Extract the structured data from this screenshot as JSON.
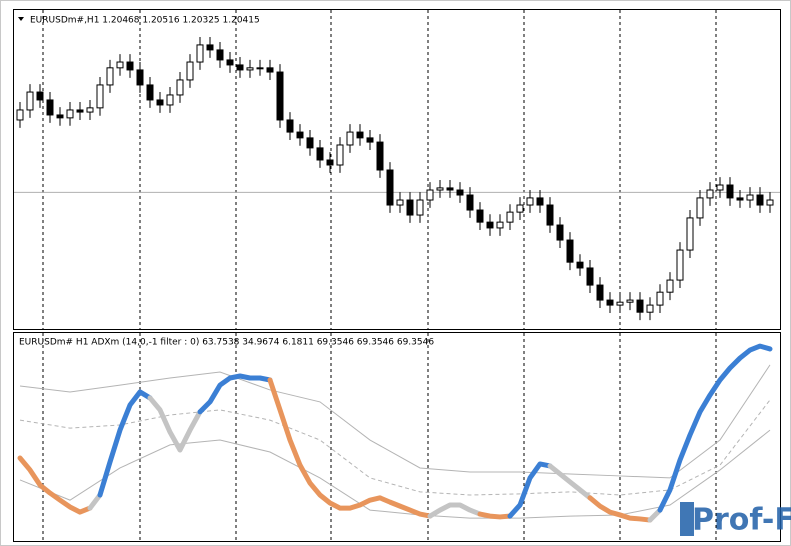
{
  "chart_data": [
    {
      "type": "candlestick",
      "title": "EURUSDm#,H1  1.20468 1.20516 1.20325 1.20415",
      "ylim": [
        1.199,
        1.211
      ],
      "price_line": 1.20415,
      "up_color": "#ffffff",
      "down_color": "#000000",
      "open": [
        1.2069,
        1.20728,
        1.20796,
        1.20766,
        1.20709,
        1.20698,
        1.20728,
        1.2072,
        1.20736,
        1.20823,
        1.20888,
        1.2091,
        1.2088,
        1.20823,
        1.20766,
        1.20747,
        1.20785,
        1.20842,
        1.2091,
        1.20975,
        1.20956,
        1.20918,
        1.20899,
        1.2088,
        1.20888,
        1.20888,
        1.20872,
        1.2069,
        1.20644,
        1.20622,
        1.20584,
        1.20538,
        1.20519,
        1.20595,
        1.20644,
        1.20622,
        1.20606,
        1.205,
        1.20367,
        1.20386,
        1.20329,
        1.20386,
        1.20424,
        1.20432,
        1.20424,
        1.20405,
        1.20348,
        1.20302,
        1.2028,
        1.20302,
        1.2034,
        1.20367,
        1.20394,
        1.20367,
        1.20291,
        1.20234,
        1.2015,
        1.20128,
        1.20063,
        1.20006,
        1.19987,
        1.19998,
        1.20006,
        1.1996,
        1.19987,
        1.20036,
        1.20082,
        1.20196,
        1.20318,
        1.20394,
        1.20424,
        1.20443,
        1.20394,
        1.20386,
        1.20405,
        1.20367
      ],
      "high": [
        1.20758,
        1.20826,
        1.20826,
        1.20796,
        1.20739,
        1.20758,
        1.20758,
        1.20766,
        1.20853,
        1.20918,
        1.2094,
        1.2094,
        1.2091,
        1.20853,
        1.20796,
        1.20815,
        1.20872,
        1.2094,
        1.21005,
        1.21005,
        1.20986,
        1.20948,
        1.20929,
        1.20918,
        1.20918,
        1.20918,
        1.20902,
        1.2072,
        1.20674,
        1.20652,
        1.20614,
        1.20568,
        1.20625,
        1.20674,
        1.20674,
        1.20652,
        1.20636,
        1.2053,
        1.20416,
        1.20416,
        1.20416,
        1.20454,
        1.20462,
        1.20462,
        1.20454,
        1.20435,
        1.20378,
        1.20332,
        1.20332,
        1.2037,
        1.20397,
        1.20424,
        1.20424,
        1.20397,
        1.20321,
        1.20264,
        1.2018,
        1.20158,
        1.20093,
        1.20036,
        1.20028,
        1.20036,
        1.20036,
        1.20017,
        1.20066,
        1.20112,
        1.20226,
        1.20348,
        1.20424,
        1.20454,
        1.20473,
        1.20473,
        1.20424,
        1.20435,
        1.20435,
        1.20416
      ],
      "low": [
        1.2066,
        1.20698,
        1.20736,
        1.20679,
        1.20668,
        1.20668,
        1.2069,
        1.2069,
        1.20706,
        1.20793,
        1.20858,
        1.2085,
        1.20793,
        1.20736,
        1.20717,
        1.20717,
        1.20755,
        1.20812,
        1.2088,
        1.20926,
        1.20888,
        1.20869,
        1.2085,
        1.2085,
        1.20858,
        1.20842,
        1.2066,
        1.20614,
        1.20592,
        1.20554,
        1.20508,
        1.20489,
        1.20489,
        1.20565,
        1.20592,
        1.20576,
        1.2047,
        1.20337,
        1.20337,
        1.20299,
        1.20299,
        1.20356,
        1.20394,
        1.20394,
        1.20375,
        1.20318,
        1.20272,
        1.2025,
        1.2025,
        1.20272,
        1.2031,
        1.20337,
        1.20337,
        1.20261,
        1.20204,
        1.2012,
        1.20098,
        1.20033,
        1.19976,
        1.19957,
        1.19957,
        1.19968,
        1.1993,
        1.1993,
        1.19957,
        1.20006,
        1.20052,
        1.20166,
        1.20288,
        1.20364,
        1.20394,
        1.20364,
        1.20356,
        1.20356,
        1.20337,
        1.20337
      ],
      "close": [
        1.20728,
        1.20796,
        1.20766,
        1.20709,
        1.20698,
        1.20728,
        1.2072,
        1.20736,
        1.20823,
        1.20888,
        1.2091,
        1.2088,
        1.20823,
        1.20766,
        1.20747,
        1.20785,
        1.20842,
        1.2091,
        1.20975,
        1.20956,
        1.20918,
        1.20899,
        1.2088,
        1.20888,
        1.20888,
        1.20872,
        1.2069,
        1.20644,
        1.20622,
        1.20584,
        1.20538,
        1.20519,
        1.20595,
        1.20644,
        1.20622,
        1.20606,
        1.205,
        1.20367,
        1.20386,
        1.20329,
        1.20386,
        1.20424,
        1.20432,
        1.20424,
        1.20405,
        1.20348,
        1.20302,
        1.2028,
        1.20302,
        1.2034,
        1.20367,
        1.20394,
        1.20367,
        1.20291,
        1.20234,
        1.2015,
        1.20128,
        1.20063,
        1.20006,
        1.19987,
        1.19998,
        1.20006,
        1.1996,
        1.19987,
        1.20036,
        1.20082,
        1.20196,
        1.20318,
        1.20394,
        1.20424,
        1.20443,
        1.20394,
        1.20386,
        1.20405,
        1.20367,
        1.20386
      ]
    },
    {
      "type": "line",
      "title": "EURUSDm# H1 ADXm (14,0,-1 filter : 0) 63.7538 34.9674 6.1811 69.3546 69.3546 69.3546",
      "ylim": [
        0,
        72
      ],
      "series": [
        {
          "values": [
            28.8,
            24.6,
            19.3,
            16.5,
            14.0,
            11.6,
            9.8,
            11.2,
            15.8,
            27.4,
            38.6,
            47.4,
            52.0,
            49.9,
            45.7,
            37.9,
            31.6,
            38.6,
            45.0,
            48.5,
            54.4,
            56.9,
            57.6,
            56.9,
            56.9,
            56.2,
            45.7,
            35.1,
            26.3,
            20.0,
            15.8,
            13.0,
            11.2,
            11.2,
            12.3,
            14.0,
            14.8,
            13.3,
            11.9,
            10.5,
            9.1,
            8.4,
            10.5,
            12.3,
            12.3,
            10.5,
            9.1,
            8.4,
            8.1,
            8.4,
            12.3,
            21.8,
            26.7,
            26.0,
            23.2,
            20.4,
            17.6,
            14.8,
            11.9,
            9.8,
            8.8,
            7.7,
            7.4,
            7.0,
            10.5,
            17.6,
            28.1,
            36.9,
            45.0,
            50.9,
            56.2,
            60.4,
            63.9,
            66.7,
            68.1,
            67.1
          ],
          "point_colors": [
            "#e8955c",
            "#e8955c",
            "#e8955c",
            "#e8955c",
            "#e8955c",
            "#e8955c",
            "#e8955c",
            "#e8955c",
            "#c4c4c4",
            "#3b7fd4",
            "#3b7fd4",
            "#3b7fd4",
            "#3b7fd4",
            "#3b7fd4",
            "#c4c4c4",
            "#c4c4c4",
            "#c4c4c4",
            "#c4c4c4",
            "#c4c4c4",
            "#3b7fd4",
            "#3b7fd4",
            "#3b7fd4",
            "#3b7fd4",
            "#3b7fd4",
            "#3b7fd4",
            "#3b7fd4",
            "#e8955c",
            "#e8955c",
            "#e8955c",
            "#e8955c",
            "#e8955c",
            "#e8955c",
            "#e8955c",
            "#e8955c",
            "#e8955c",
            "#e8955c",
            "#e8955c",
            "#e8955c",
            "#e8955c",
            "#e8955c",
            "#e8955c",
            "#e8955c",
            "#c4c4c4",
            "#c4c4c4",
            "#c4c4c4",
            "#c4c4c4",
            "#c4c4c4",
            "#e8955c",
            "#e8955c",
            "#e8955c",
            "#3b7fd4",
            "#3b7fd4",
            "#3b7fd4",
            "#3b7fd4",
            "#c4c4c4",
            "#c4c4c4",
            "#c4c4c4",
            "#c4c4c4",
            "#e8955c",
            "#e8955c",
            "#e8955c",
            "#e8955c",
            "#e8955c",
            "#e8955c",
            "#c4c4c4",
            "#3b7fd4",
            "#3b7fd4",
            "#3b7fd4",
            "#3b7fd4",
            "#3b7fd4",
            "#3b7fd4",
            "#3b7fd4",
            "#3b7fd4",
            "#3b7fd4",
            "#3b7fd4",
            "#3b7fd4"
          ]
        }
      ],
      "bands": [
        {
          "color": "#b4b4b4",
          "dashed": false,
          "x": [
            0,
            5,
            10,
            15,
            20,
            25,
            30,
            35,
            40,
            45,
            50,
            55,
            60,
            65,
            70,
            75
          ],
          "values": [
            54.1,
            52.0,
            54.4,
            56.9,
            59.0,
            52.7,
            48.5,
            35.1,
            25.3,
            23.9,
            23.9,
            23.2,
            22.5,
            21.8,
            35.1,
            61.5
          ]
        },
        {
          "color": "#b4b4b4",
          "dashed": true,
          "x": [
            0,
            5,
            10,
            15,
            20,
            25,
            30,
            35,
            40,
            45,
            50,
            55,
            60,
            65,
            70,
            75
          ],
          "values": [
            42.1,
            39.3,
            40.4,
            43.9,
            45.7,
            42.1,
            35.1,
            21.8,
            16.9,
            15.8,
            16.2,
            16.9,
            15.8,
            17.6,
            26.3,
            49.2
          ]
        },
        {
          "color": "#b4b4b4",
          "dashed": false,
          "x": [
            0,
            5,
            10,
            15,
            20,
            25,
            30,
            35,
            40,
            45,
            50,
            55,
            60,
            65,
            70,
            75
          ],
          "values": [
            21.1,
            14.0,
            25.3,
            33.4,
            35.1,
            30.9,
            21.8,
            10.5,
            8.8,
            7.7,
            7.7,
            8.4,
            8.8,
            12.3,
            24.6,
            38.6
          ]
        }
      ]
    }
  ],
  "watermark": "Prof-FX"
}
